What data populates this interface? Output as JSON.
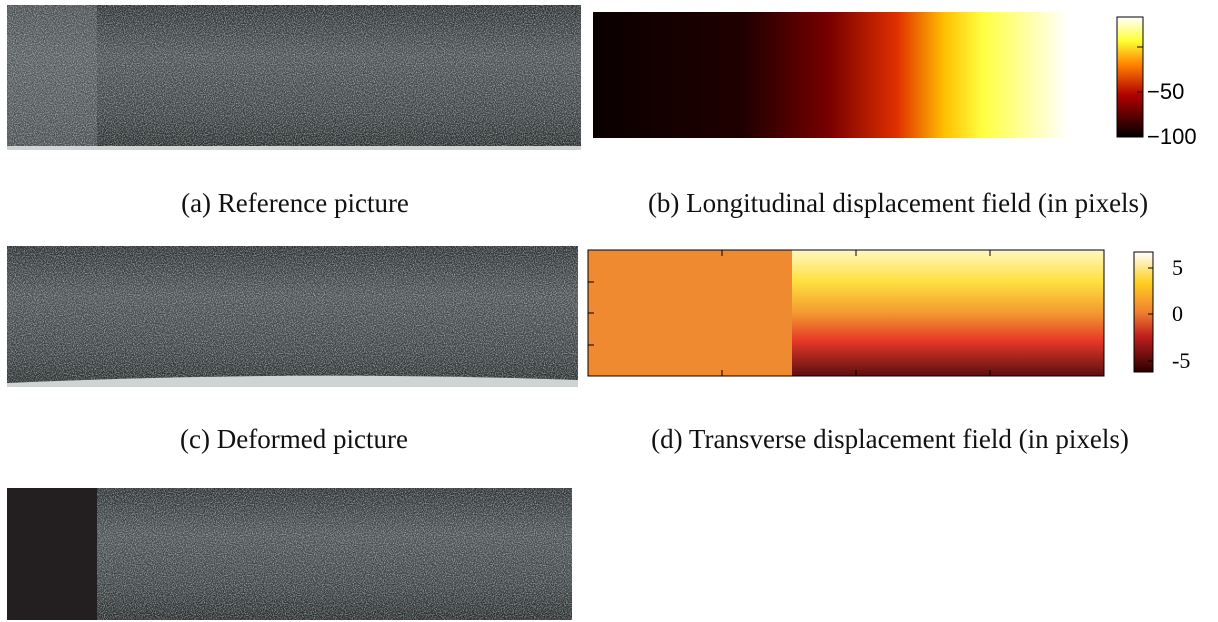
{
  "panels": [
    {
      "caption": "(a) Reference picture"
    },
    {
      "caption": "(b) Longitudinal displacement field (in pixels)",
      "colorbar_ticks": [
        "−50",
        "−100"
      ]
    },
    {
      "caption": "(c) Deformed picture"
    },
    {
      "caption": "(d) Transverse displacement field (in pixels)",
      "colorbar_ticks": [
        "5",
        "0",
        "-5"
      ]
    }
  ]
}
